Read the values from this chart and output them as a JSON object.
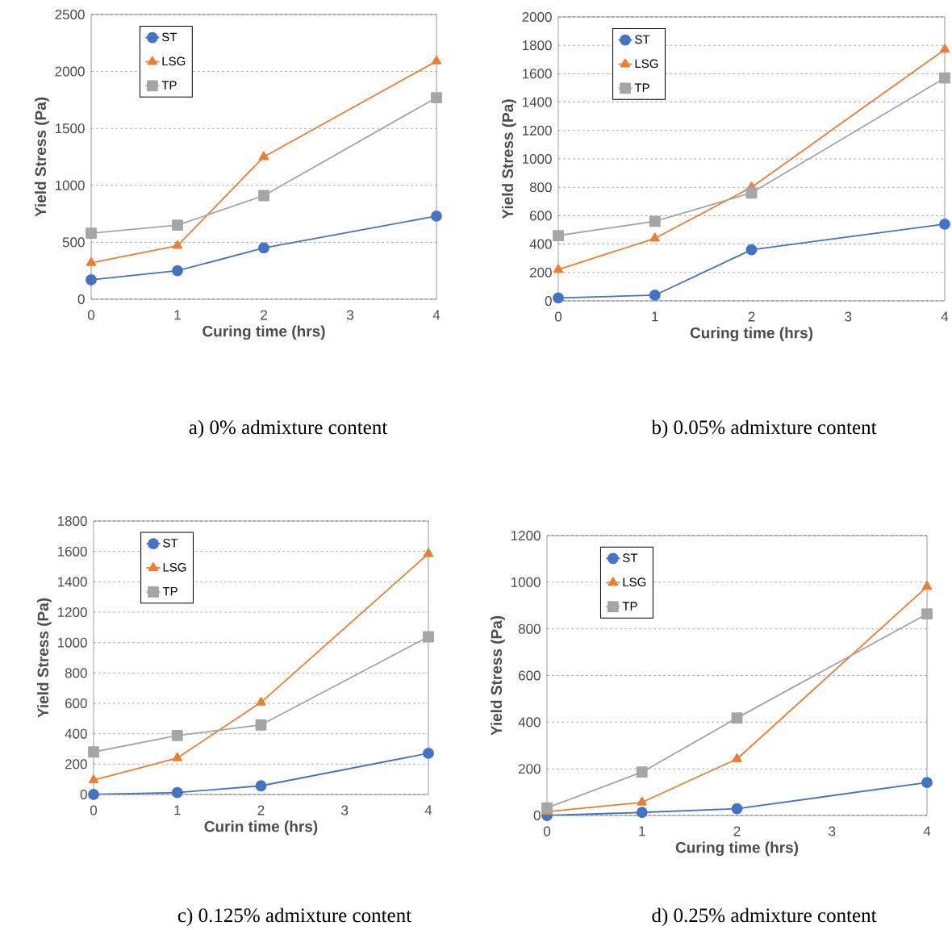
{
  "chart_data": [
    {
      "type": "line",
      "xlabel": "Curing time (hrs)",
      "ylabel": "Yield Stress (Pa)",
      "annotations": [
        "a)   0% admixture content"
      ],
      "x": [
        0,
        1,
        2,
        4
      ],
      "xlim": [
        0,
        4
      ],
      "xticks": [
        0,
        1,
        2,
        3,
        4
      ],
      "ylim": [
        0,
        2500
      ],
      "yticks": [
        0,
        500,
        1000,
        1500,
        2000,
        2500
      ],
      "grid": "y",
      "legend": "top left",
      "line_style": "solid",
      "series": [
        {
          "name": "ST",
          "color": "#4472c4",
          "marker": "circle",
          "values": [
            170,
            250,
            450,
            730
          ]
        },
        {
          "name": "LSG",
          "color": "#ed7d31",
          "marker": "triangle",
          "values": [
            320,
            470,
            1250,
            2090
          ]
        },
        {
          "name": "TP",
          "color": "#a5a5a5",
          "marker": "square",
          "values": [
            580,
            650,
            910,
            1770
          ]
        }
      ]
    },
    {
      "type": "line",
      "xlabel": "Curing time (hrs)",
      "ylabel": "Yield Stress (Pa)",
      "annotations": [
        "b) 0.05% admixture content"
      ],
      "x": [
        0,
        1,
        2,
        4
      ],
      "xlim": [
        0,
        4
      ],
      "xticks": [
        0,
        1,
        2,
        3,
        4
      ],
      "ylim": [
        0,
        2000
      ],
      "yticks": [
        0,
        200,
        400,
        600,
        800,
        1000,
        1200,
        1400,
        1600,
        1800,
        2000
      ],
      "grid": "y",
      "legend": "top left",
      "line_style": "solid",
      "series": [
        {
          "name": "ST",
          "color": "#4472c4",
          "marker": "circle",
          "values": [
            20,
            40,
            360,
            540
          ]
        },
        {
          "name": "LSG",
          "color": "#ed7d31",
          "marker": "triangle",
          "values": [
            220,
            440,
            800,
            1770
          ]
        },
        {
          "name": "TP",
          "color": "#a5a5a5",
          "marker": "square",
          "values": [
            460,
            560,
            760,
            1570
          ]
        }
      ]
    },
    {
      "type": "line",
      "xlabel": "Curin time (hrs)",
      "ylabel": "Yield Stress (Pa)",
      "annotations": [
        "c)   0.125% admixture content"
      ],
      "x": [
        0,
        1,
        2,
        4
      ],
      "xlim": [
        0,
        4
      ],
      "xticks": [
        0,
        1,
        2,
        3,
        4
      ],
      "ylim": [
        0,
        1800
      ],
      "yticks": [
        0,
        200,
        400,
        600,
        800,
        1000,
        1200,
        1400,
        1600,
        1800
      ],
      "grid": "y",
      "legend": "top left",
      "line_style": "solid",
      "series": [
        {
          "name": "ST",
          "color": "#4472c4",
          "marker": "circle",
          "values": [
            0,
            13,
            57,
            271
          ]
        },
        {
          "name": "LSG",
          "color": "#ed7d31",
          "marker": "triangle",
          "values": [
            95,
            240,
            606,
            1585
          ]
        },
        {
          "name": "TP",
          "color": "#a5a5a5",
          "marker": "square",
          "values": [
            280,
            388,
            458,
            1038
          ]
        }
      ]
    },
    {
      "type": "line",
      "xlabel": "Curing time (hrs)",
      "ylabel": "Yield Stress (Pa)",
      "annotations": [
        "d) 0.25% admixture content"
      ],
      "x": [
        0,
        1,
        2,
        4
      ],
      "xlim": [
        0,
        4
      ],
      "xticks": [
        0,
        1,
        2,
        3,
        4
      ],
      "ylim": [
        0,
        1200
      ],
      "yticks": [
        0,
        200,
        400,
        600,
        800,
        1000,
        1200
      ],
      "grid": "y",
      "legend": "top left",
      "line_style": "solid",
      "series": [
        {
          "name": "ST",
          "color": "#4472c4",
          "marker": "circle",
          "values": [
            0,
            13,
            29,
            141
          ]
        },
        {
          "name": "LSG",
          "color": "#ed7d31",
          "marker": "triangle",
          "values": [
            16,
            56,
            242,
            981
          ]
        },
        {
          "name": "TP",
          "color": "#a5a5a5",
          "marker": "square",
          "values": [
            32,
            186,
            418,
            864
          ]
        }
      ]
    }
  ]
}
